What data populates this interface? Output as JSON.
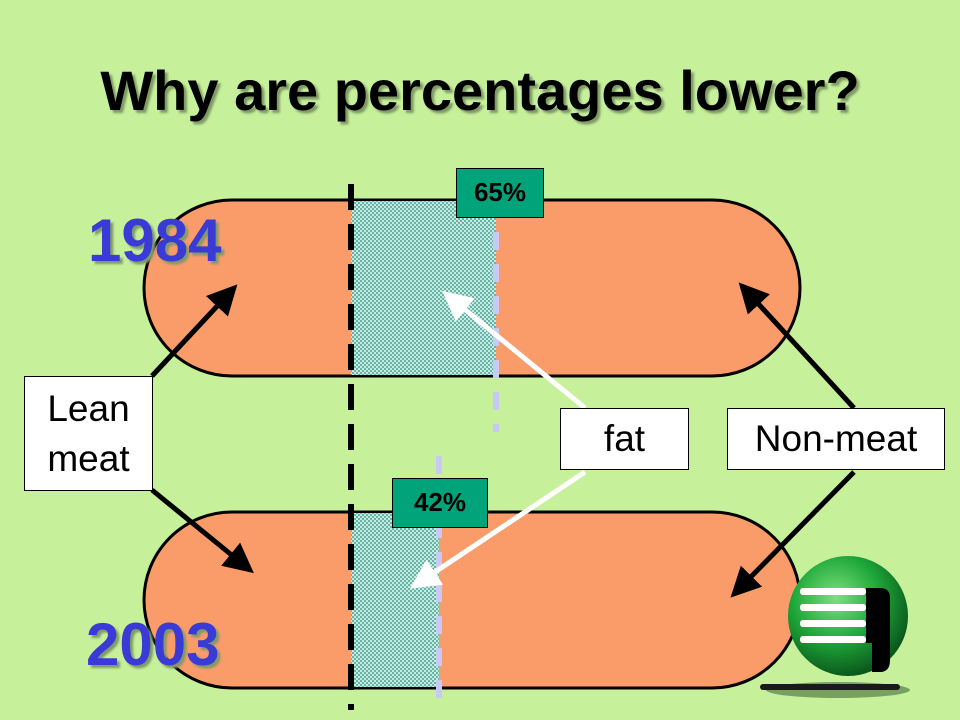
{
  "slide": {
    "title": "Why are percentages lower?"
  },
  "years": {
    "top": "1984",
    "bottom": "2003"
  },
  "percentages": {
    "top": "65%",
    "bottom": "42%"
  },
  "callouts": {
    "lean_line1": "Lean",
    "lean_line2": "meat",
    "fat": "fat",
    "non_meat": "Non-meat"
  },
  "colors": {
    "background": "#c6f09a",
    "sausage": "#fa9b6a",
    "fat_band": "#a8e6d8",
    "year_text": "#3a3ad6",
    "percent_badge": "#00a37a",
    "logo": "#1fa83a"
  }
}
